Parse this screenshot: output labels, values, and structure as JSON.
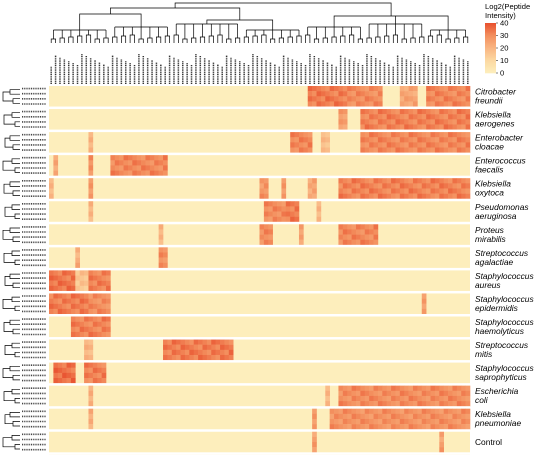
{
  "chart_data": {
    "type": "heatmap",
    "legend": {
      "title_line1": "Log2(Peptide",
      "title_line2": "Intensity)",
      "ticks": [
        40,
        30,
        20,
        10,
        0
      ],
      "range": [
        0,
        40
      ],
      "placement": "top-right",
      "colors": [
        "#fdeebc",
        "#fcd9a2",
        "#f9b582",
        "#f38f5e",
        "#e8502e"
      ]
    },
    "background_color": "#fdeebc",
    "column_count": 96,
    "rows": [
      {
        "label_line1": "Citrobacter",
        "label_line2": "freundii",
        "italic": true,
        "replicates": 4,
        "blocks": [
          [
            59,
            68,
            33
          ],
          [
            68,
            76,
            30
          ],
          [
            80,
            84,
            24
          ],
          [
            86,
            96,
            31
          ]
        ]
      },
      {
        "label_line1": "Klebsiella",
        "label_line2": "aerogenes",
        "italic": true,
        "replicates": 4,
        "blocks": [
          [
            66,
            68,
            26
          ],
          [
            71,
            96,
            32
          ]
        ]
      },
      {
        "label_line1": "Enterobacter",
        "label_line2": "cloacae",
        "italic": true,
        "replicates": 4,
        "blocks": [
          [
            9,
            10,
            22
          ],
          [
            55,
            60,
            31
          ],
          [
            62,
            64,
            18
          ],
          [
            71,
            96,
            31
          ]
        ]
      },
      {
        "label_line1": "Enterococcus",
        "label_line2": "faecalis",
        "italic": true,
        "replicates": 4,
        "blocks": [
          [
            1,
            2,
            22
          ],
          [
            9,
            10,
            30
          ],
          [
            14,
            27,
            31
          ]
        ]
      },
      {
        "label_line1": "Klebsiella",
        "label_line2": "oxytoca",
        "italic": true,
        "replicates": 4,
        "blocks": [
          [
            0,
            1,
            20
          ],
          [
            9,
            10,
            28
          ],
          [
            48,
            50,
            28
          ],
          [
            53,
            54,
            26
          ],
          [
            59,
            61,
            24
          ],
          [
            66,
            96,
            32
          ]
        ]
      },
      {
        "label_line1": "Pseudomonas",
        "label_line2": "aeruginosa",
        "italic": true,
        "replicates": 4,
        "blocks": [
          [
            9,
            10,
            20
          ],
          [
            49,
            54,
            30
          ],
          [
            54,
            57,
            33
          ],
          [
            61,
            62,
            20
          ]
        ]
      },
      {
        "label_line1": "Proteus",
        "label_line2": "mirabilis",
        "italic": true,
        "replicates": 4,
        "blocks": [
          [
            25,
            26,
            20
          ],
          [
            48,
            51,
            30
          ],
          [
            57,
            58,
            26
          ],
          [
            66,
            75,
            31
          ]
        ]
      },
      {
        "label_line1": "Streptococcus",
        "label_line2": "agalactiae",
        "italic": true,
        "replicates": 4,
        "blocks": [
          [
            6,
            7,
            22
          ],
          [
            25,
            27,
            30
          ]
        ]
      },
      {
        "label_line1": "Staphylococcus",
        "label_line2": "aureus",
        "italic": true,
        "replicates": 4,
        "blocks": [
          [
            0,
            6,
            34
          ],
          [
            6,
            9,
            16
          ],
          [
            9,
            14,
            32
          ]
        ]
      },
      {
        "label_line1": "Staphylococcus",
        "label_line2": "epidermidis",
        "italic": true,
        "replicates": 4,
        "blocks": [
          [
            0,
            9,
            33
          ],
          [
            9,
            14,
            30
          ],
          [
            85,
            86,
            28
          ]
        ]
      },
      {
        "label_line1": "Staphylococcus",
        "label_line2": "haemolyticus",
        "italic": true,
        "replicates": 4,
        "blocks": [
          [
            5,
            14,
            32
          ]
        ]
      },
      {
        "label_line1": "Streptococcus",
        "label_line2": "mitis",
        "italic": true,
        "replicates": 4,
        "blocks": [
          [
            8,
            10,
            20
          ],
          [
            26,
            42,
            33
          ]
        ]
      },
      {
        "label_line1": "Staphylococcus",
        "label_line2": "saprophyticus",
        "italic": true,
        "replicates": 4,
        "blocks": [
          [
            1,
            6,
            35
          ],
          [
            8,
            13,
            32
          ]
        ]
      },
      {
        "label_line1": "Escherichia",
        "label_line2": "coli",
        "italic": true,
        "replicates": 4,
        "blocks": [
          [
            9,
            10,
            22
          ],
          [
            63,
            64,
            20
          ],
          [
            66,
            96,
            30
          ]
        ]
      },
      {
        "label_line1": "Klebsiella",
        "label_line2": "pneumoniae",
        "italic": true,
        "replicates": 4,
        "blocks": [
          [
            9,
            10,
            22
          ],
          [
            60,
            61,
            26
          ],
          [
            64,
            96,
            29
          ]
        ]
      },
      {
        "label_line1": "Control",
        "label_line2": "",
        "italic": false,
        "replicates": 4,
        "blocks": [
          [
            60,
            61,
            26
          ],
          [
            89,
            90,
            26
          ]
        ]
      }
    ]
  }
}
